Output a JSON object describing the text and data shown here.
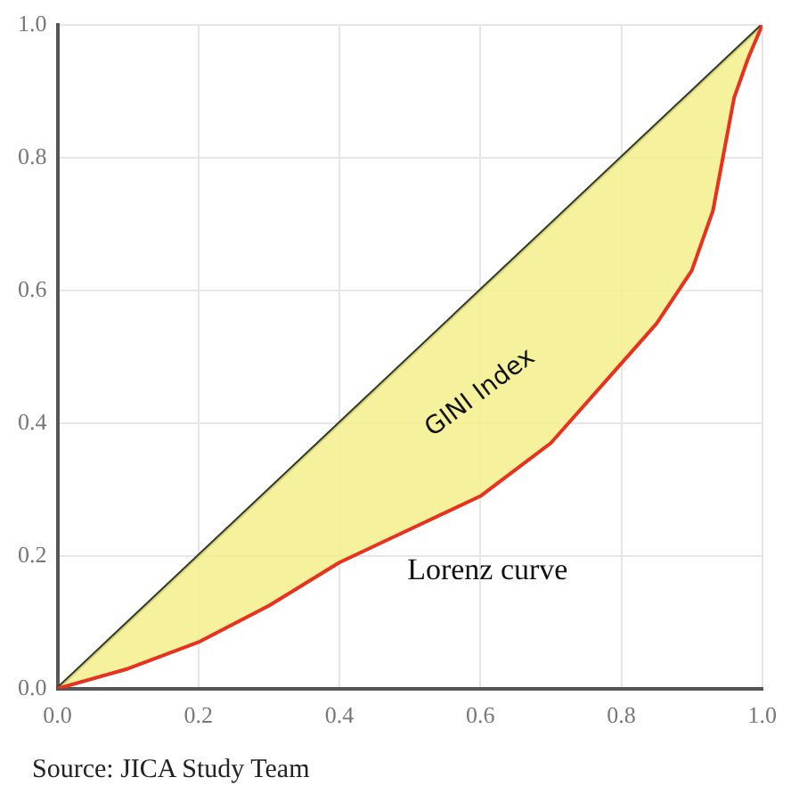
{
  "chart_data": {
    "type": "line",
    "series": [
      {
        "color": "#2f3a2a",
        "x": [
          0,
          1
        ],
        "values": [
          0,
          1
        ]
      },
      {
        "name": "Lorenz curve",
        "color": "#e8321e",
        "x": [
          0,
          0.1,
          0.2,
          0.3,
          0.4,
          0.5,
          0.6,
          0.7,
          0.8,
          0.85,
          0.9,
          0.93,
          0.96,
          0.98,
          1
        ],
        "values": [
          0,
          0.03,
          0.07,
          0.125,
          0.19,
          0.24,
          0.29,
          0.37,
          0.49,
          0.55,
          0.63,
          0.72,
          0.89,
          0.95,
          1
        ]
      }
    ],
    "xlim": [
      0,
      1
    ],
    "ylim": [
      0,
      1
    ],
    "xticks": [
      {
        "value": 0,
        "label": "0.0"
      },
      {
        "value": 0.2,
        "label": "0.2"
      },
      {
        "value": 0.4,
        "label": "0.4"
      },
      {
        "value": 0.6,
        "label": "0.6"
      },
      {
        "value": 0.8,
        "label": "0.8"
      },
      {
        "value": 1,
        "label": "1.0"
      }
    ],
    "yticks": [
      {
        "value": 0,
        "label": "0.0"
      },
      {
        "value": 0.2,
        "label": "0.2"
      },
      {
        "value": 0.4,
        "label": "0.4"
      },
      {
        "value": 0.6,
        "label": "0.6"
      },
      {
        "value": 0.8,
        "label": "0.8"
      },
      {
        "value": 1,
        "label": "1.0"
      }
    ],
    "grid": true,
    "marker": "none",
    "line_style": "solid",
    "annotations": [
      "GINI Index",
      "Source: JICA Study Team"
    ]
  }
}
